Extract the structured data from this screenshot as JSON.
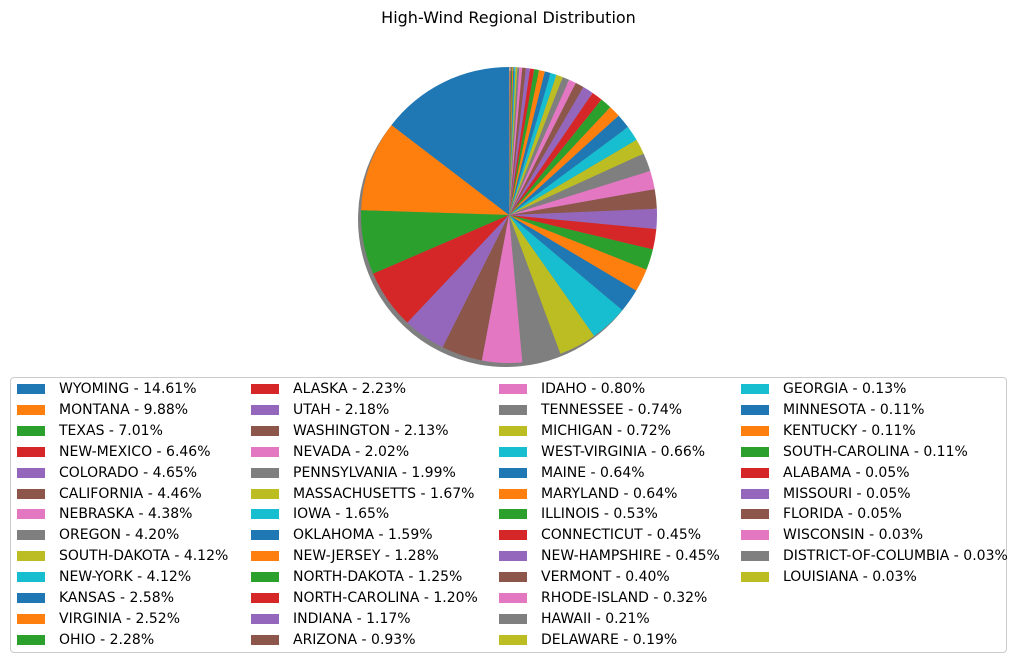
{
  "chart_data": {
    "type": "pie",
    "title": "High-Wind Regional Distribution",
    "shadow": true,
    "start_angle_deg": 90,
    "direction": "counterclockwise",
    "legend_placement": "bottom",
    "legend_columns": 4,
    "colors": [
      "#1f77b4",
      "#ff7f0e",
      "#2ca02c",
      "#d62728",
      "#9467bd",
      "#8c564b",
      "#e377c2",
      "#7f7f7f",
      "#bcbd22",
      "#17becf"
    ],
    "slices": [
      {
        "label": "WYOMING",
        "value": 14.61
      },
      {
        "label": "MONTANA",
        "value": 9.88
      },
      {
        "label": "TEXAS",
        "value": 7.01
      },
      {
        "label": "NEW-MEXICO",
        "value": 6.46
      },
      {
        "label": "COLORADO",
        "value": 4.65
      },
      {
        "label": "CALIFORNIA",
        "value": 4.46
      },
      {
        "label": "NEBRASKA",
        "value": 4.38
      },
      {
        "label": "OREGON",
        "value": 4.2
      },
      {
        "label": "SOUTH-DAKOTA",
        "value": 4.12
      },
      {
        "label": "NEW-YORK",
        "value": 4.12
      },
      {
        "label": "KANSAS",
        "value": 2.58
      },
      {
        "label": "VIRGINIA",
        "value": 2.52
      },
      {
        "label": "OHIO",
        "value": 2.28
      },
      {
        "label": "ALASKA",
        "value": 2.23
      },
      {
        "label": "UTAH",
        "value": 2.18
      },
      {
        "label": "WASHINGTON",
        "value": 2.13
      },
      {
        "label": "NEVADA",
        "value": 2.02
      },
      {
        "label": "PENNSYLVANIA",
        "value": 1.99
      },
      {
        "label": "MASSACHUSETTS",
        "value": 1.67
      },
      {
        "label": "IOWA",
        "value": 1.65
      },
      {
        "label": "OKLAHOMA",
        "value": 1.59
      },
      {
        "label": "NEW-JERSEY",
        "value": 1.28
      },
      {
        "label": "NORTH-DAKOTA",
        "value": 1.25
      },
      {
        "label": "NORTH-CAROLINA",
        "value": 1.2
      },
      {
        "label": "INDIANA",
        "value": 1.17
      },
      {
        "label": "ARIZONA",
        "value": 0.93
      },
      {
        "label": "IDAHO",
        "value": 0.8
      },
      {
        "label": "TENNESSEE",
        "value": 0.74
      },
      {
        "label": "MICHIGAN",
        "value": 0.72
      },
      {
        "label": "WEST-VIRGINIA",
        "value": 0.66
      },
      {
        "label": "MAINE",
        "value": 0.64
      },
      {
        "label": "MARYLAND",
        "value": 0.64
      },
      {
        "label": "ILLINOIS",
        "value": 0.53
      },
      {
        "label": "CONNECTICUT",
        "value": 0.45
      },
      {
        "label": "NEW-HAMPSHIRE",
        "value": 0.45
      },
      {
        "label": "VERMONT",
        "value": 0.4
      },
      {
        "label": "RHODE-ISLAND",
        "value": 0.32
      },
      {
        "label": "HAWAII",
        "value": 0.21
      },
      {
        "label": "DELAWARE",
        "value": 0.19
      },
      {
        "label": "GEORGIA",
        "value": 0.13
      },
      {
        "label": "MINNESOTA",
        "value": 0.11
      },
      {
        "label": "KENTUCKY",
        "value": 0.11
      },
      {
        "label": "SOUTH-CAROLINA",
        "value": 0.11
      },
      {
        "label": "ALABAMA",
        "value": 0.05
      },
      {
        "label": "MISSOURI",
        "value": 0.05
      },
      {
        "label": "FLORIDA",
        "value": 0.05
      },
      {
        "label": "WISCONSIN",
        "value": 0.03
      },
      {
        "label": "DISTRICT-OF-COLUMBIA",
        "value": 0.03
      },
      {
        "label": "LOUISIANA",
        "value": 0.03
      }
    ]
  }
}
